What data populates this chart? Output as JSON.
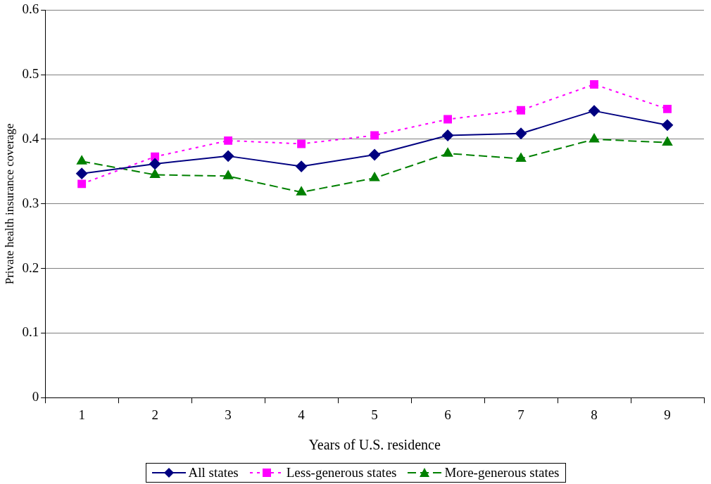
{
  "chart_data": {
    "type": "line",
    "xlabel": "Years of U.S. residence",
    "ylabel": "Private health insurance coverage",
    "categories": [
      "1",
      "2",
      "3",
      "4",
      "5",
      "6",
      "7",
      "8",
      "9"
    ],
    "series": [
      {
        "name": "All states",
        "color": "#000080",
        "marker": "diamond",
        "line_style": "solid",
        "values": [
          0.347,
          0.362,
          0.374,
          0.358,
          0.376,
          0.406,
          0.409,
          0.444,
          0.422
        ]
      },
      {
        "name": "Less-generous states",
        "color": "#ff00ff",
        "marker": "square",
        "line_style": "dotted",
        "values": [
          0.331,
          0.373,
          0.398,
          0.393,
          0.406,
          0.431,
          0.445,
          0.485,
          0.447
        ]
      },
      {
        "name": "More-generous states",
        "color": "#008000",
        "marker": "triangle",
        "line_style": "dashed",
        "values": [
          0.366,
          0.345,
          0.343,
          0.318,
          0.34,
          0.378,
          0.37,
          0.4,
          0.395
        ]
      }
    ],
    "ylim": [
      0,
      0.6
    ],
    "yticks": [
      0,
      0.1,
      0.2,
      0.3,
      0.4,
      0.5,
      0.6
    ],
    "grid": "y",
    "legend": "bottom"
  }
}
